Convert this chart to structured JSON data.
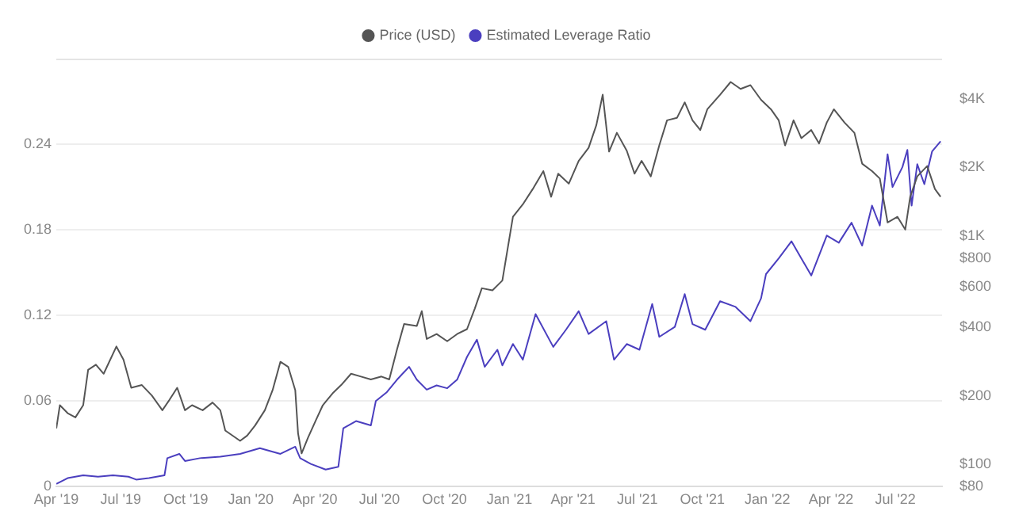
{
  "chart_data": {
    "type": "line",
    "legend": "top",
    "grid": "y",
    "log": "y2",
    "xlim": [
      "2019-04-01",
      "2022-09-05"
    ],
    "xticks": [
      {
        "value": "2019-04",
        "label": "Apr '19"
      },
      {
        "value": "2019-07",
        "label": "Jul '19"
      },
      {
        "value": "2019-10",
        "label": "Oct '19"
      },
      {
        "value": "2020-01",
        "label": "Jan '20"
      },
      {
        "value": "2020-04",
        "label": "Apr '20"
      },
      {
        "value": "2020-07",
        "label": "Jul '20"
      },
      {
        "value": "2020-10",
        "label": "Oct '20"
      },
      {
        "value": "2021-01",
        "label": "Jan '21"
      },
      {
        "value": "2021-04",
        "label": "Apr '21"
      },
      {
        "value": "2021-07",
        "label": "Jul '21"
      },
      {
        "value": "2021-10",
        "label": "Oct '21"
      },
      {
        "value": "2022-01",
        "label": "Jan '22"
      },
      {
        "value": "2022-04",
        "label": "Apr '22"
      },
      {
        "value": "2022-07",
        "label": "Jul '22"
      }
    ],
    "ylim": [
      0,
      0.3
    ],
    "yticks": [
      0,
      0.06,
      0.12,
      0.18,
      0.24
    ],
    "y2lim": [
      80,
      6000
    ],
    "y2ticks": [
      {
        "value": 80,
        "label": "$80"
      },
      {
        "value": 100,
        "label": "$100"
      },
      {
        "value": 200,
        "label": "$200"
      },
      {
        "value": 400,
        "label": "$400"
      },
      {
        "value": 600,
        "label": "$600"
      },
      {
        "value": 800,
        "label": "$800"
      },
      {
        "value": 1000,
        "label": "$1K"
      },
      {
        "value": 2000,
        "label": "$2K"
      },
      {
        "value": 4000,
        "label": "$4K"
      }
    ],
    "series": [
      {
        "name": "Price (USD)",
        "color": "#555555",
        "axis": "y2",
        "x": [
          "2019-04-01",
          "2019-04-06",
          "2019-04-17",
          "2019-04-28",
          "2019-05-09",
          "2019-05-16",
          "2019-05-27",
          "2019-06-07",
          "2019-06-25",
          "2019-07-05",
          "2019-07-16",
          "2019-07-31",
          "2019-08-14",
          "2019-08-29",
          "2019-09-08",
          "2019-09-19",
          "2019-09-30",
          "2019-10-10",
          "2019-10-25",
          "2019-11-08",
          "2019-11-19",
          "2019-11-26",
          "2019-12-17",
          "2019-12-27",
          "2020-01-07",
          "2020-01-21",
          "2020-02-01",
          "2020-02-12",
          "2020-02-23",
          "2020-03-04",
          "2020-03-08",
          "2020-03-13",
          "2020-03-22",
          "2020-04-02",
          "2020-04-12",
          "2020-04-27",
          "2020-05-08",
          "2020-05-22",
          "2020-06-05",
          "2020-06-19",
          "2020-07-04",
          "2020-07-15",
          "2020-07-26",
          "2020-08-05",
          "2020-08-23",
          "2020-08-30",
          "2020-09-06",
          "2020-09-20",
          "2020-10-05",
          "2020-10-19",
          "2020-11-02",
          "2020-11-13",
          "2020-11-23",
          "2020-12-08",
          "2020-12-22",
          "2021-01-06",
          "2021-01-20",
          "2021-02-03",
          "2021-02-18",
          "2021-03-01",
          "2021-03-11",
          "2021-03-26",
          "2021-04-09",
          "2021-04-23",
          "2021-05-04",
          "2021-05-13",
          "2021-05-22",
          "2021-06-02",
          "2021-06-16",
          "2021-06-27",
          "2021-07-07",
          "2021-07-20",
          "2021-08-01",
          "2021-08-12",
          "2021-08-26",
          "2021-09-06",
          "2021-09-17",
          "2021-09-28",
          "2021-10-08",
          "2021-10-26",
          "2021-11-10",
          "2021-11-24",
          "2021-12-08",
          "2021-12-23",
          "2022-01-06",
          "2022-01-17",
          "2022-01-26",
          "2022-02-07",
          "2022-02-18",
          "2022-03-04",
          "2022-03-15",
          "2022-03-26",
          "2022-04-05",
          "2022-04-20",
          "2022-05-04",
          "2022-05-15",
          "2022-05-29",
          "2022-06-09",
          "2022-06-20",
          "2022-07-04",
          "2022-07-15",
          "2022-07-22",
          "2022-08-01",
          "2022-08-15",
          "2022-08-26",
          "2022-09-03"
        ],
        "values": [
          144,
          182,
          168,
          161,
          182,
          260,
          274,
          250,
          329,
          288,
          217,
          223,
          201,
          173,
          192,
          217,
          173,
          182,
          173,
          187,
          173,
          141,
          127,
          134,
          148,
          173,
          212,
          282,
          268,
          212,
          137,
          112,
          131,
          156,
          182,
          207,
          223,
          250,
          243,
          236,
          243,
          236,
          320,
          413,
          405,
          470,
          355,
          373,
          347,
          373,
          392,
          482,
          592,
          580,
          640,
          1217,
          1380,
          1610,
          1930,
          1490,
          1880,
          1700,
          2140,
          2440,
          3070,
          4170,
          2350,
          2840,
          2370,
          1880,
          2140,
          1830,
          2500,
          3220,
          3300,
          3860,
          3220,
          2920,
          3600,
          4170,
          4740,
          4420,
          4590,
          3960,
          3600,
          3220,
          2500,
          3220,
          2690,
          2920,
          2550,
          3150,
          3600,
          3150,
          2840,
          2080,
          1930,
          1790,
          1150,
          1217,
          1070,
          1490,
          1830,
          2030,
          1610,
          1490
        ]
      },
      {
        "name": "Estimated Leverage Ratio",
        "color": "#4b3fbf",
        "x": [
          "2019-04-01",
          "2019-04-17",
          "2019-05-09",
          "2019-05-30",
          "2019-06-20",
          "2019-07-12",
          "2019-07-23",
          "2019-08-10",
          "2019-09-01",
          "2019-09-05",
          "2019-09-22",
          "2019-09-30",
          "2019-10-21",
          "2019-11-19",
          "2019-12-17",
          "2020-01-14",
          "2020-02-12",
          "2020-03-04",
          "2020-03-11",
          "2020-03-26",
          "2020-04-16",
          "2020-05-04",
          "2020-05-11",
          "2020-05-29",
          "2020-06-19",
          "2020-06-26",
          "2020-07-11",
          "2020-07-26",
          "2020-08-12",
          "2020-08-23",
          "2020-09-06",
          "2020-09-20",
          "2020-10-05",
          "2020-10-19",
          "2020-11-02",
          "2020-11-16",
          "2020-11-27",
          "2020-12-15",
          "2020-12-22",
          "2021-01-06",
          "2021-01-20",
          "2021-02-07",
          "2021-03-04",
          "2021-03-22",
          "2021-04-09",
          "2021-04-23",
          "2021-05-18",
          "2021-05-29",
          "2021-06-16",
          "2021-07-04",
          "2021-07-22",
          "2021-08-01",
          "2021-08-23",
          "2021-09-06",
          "2021-09-17",
          "2021-10-05",
          "2021-10-26",
          "2021-11-17",
          "2021-12-08",
          "2021-12-23",
          "2021-12-30",
          "2022-01-17",
          "2022-02-04",
          "2022-02-18",
          "2022-03-04",
          "2022-03-26",
          "2022-04-12",
          "2022-04-30",
          "2022-05-15",
          "2022-05-29",
          "2022-06-09",
          "2022-06-20",
          "2022-06-27",
          "2022-07-11",
          "2022-07-18",
          "2022-07-24",
          "2022-08-01",
          "2022-08-11",
          "2022-08-22",
          "2022-09-03"
        ],
        "values": [
          0.002,
          0.006,
          0.008,
          0.007,
          0.008,
          0.007,
          0.005,
          0.006,
          0.008,
          0.02,
          0.023,
          0.018,
          0.02,
          0.021,
          0.023,
          0.027,
          0.023,
          0.028,
          0.02,
          0.016,
          0.012,
          0.014,
          0.041,
          0.046,
          0.043,
          0.06,
          0.066,
          0.075,
          0.084,
          0.075,
          0.068,
          0.071,
          0.069,
          0.075,
          0.091,
          0.103,
          0.084,
          0.096,
          0.085,
          0.1,
          0.089,
          0.121,
          0.098,
          0.11,
          0.123,
          0.107,
          0.116,
          0.089,
          0.1,
          0.096,
          0.128,
          0.105,
          0.112,
          0.135,
          0.114,
          0.11,
          0.13,
          0.126,
          0.116,
          0.132,
          0.149,
          0.16,
          0.172,
          0.16,
          0.148,
          0.176,
          0.171,
          0.185,
          0.169,
          0.197,
          0.183,
          0.233,
          0.21,
          0.224,
          0.236,
          0.197,
          0.226,
          0.212,
          0.235,
          0.242
        ]
      }
    ]
  }
}
